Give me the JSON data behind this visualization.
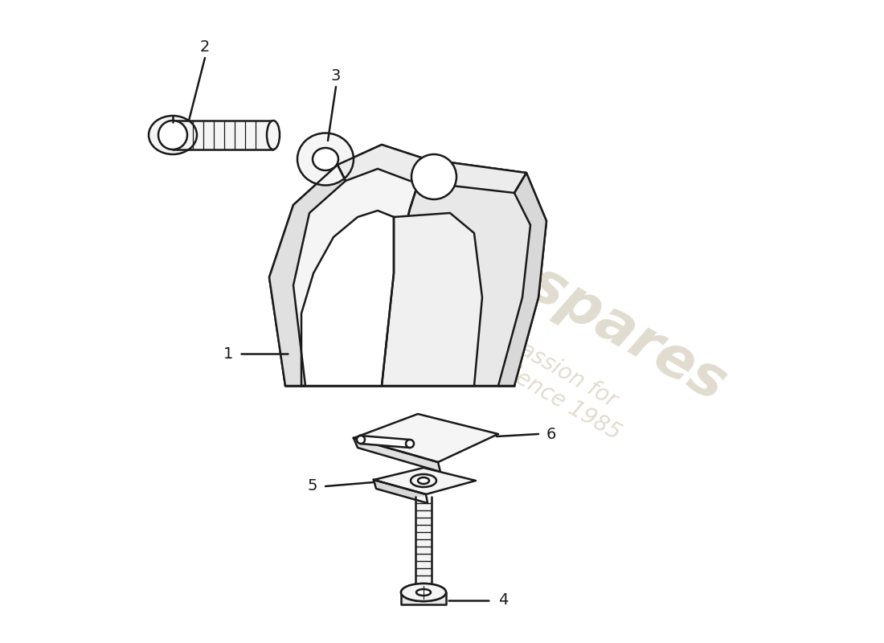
{
  "background_color": "#ffffff",
  "line_color": "#1a1a1a",
  "fill_color": "#f5f5f5",
  "watermark_color": "#c8c0a8",
  "label_color": "#1a1a1a",
  "label_fontsize": 14,
  "lw": 1.8,
  "parts": [
    "1",
    "2",
    "3",
    "4",
    "5",
    "6"
  ]
}
